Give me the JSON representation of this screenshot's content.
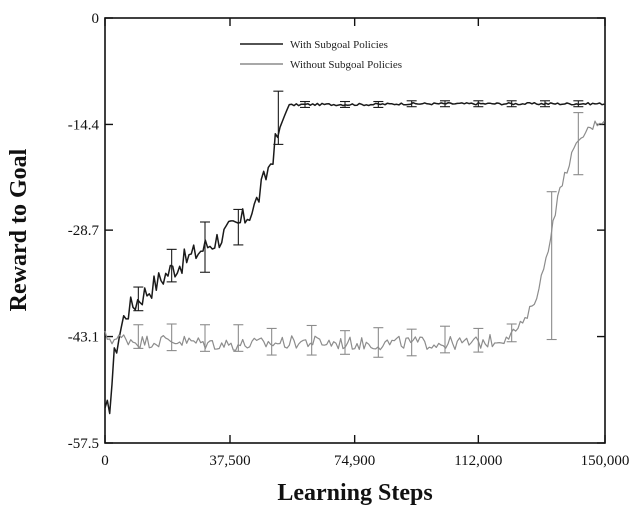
{
  "chart_data": {
    "type": "line",
    "title": "",
    "xlabel": "Learning Steps",
    "ylabel": "Reward to Goal",
    "xlim": [
      0,
      150000
    ],
    "ylim": [
      -57.5,
      0
    ],
    "x_ticks": [
      0,
      37500,
      74900,
      112000,
      150000
    ],
    "x_tick_labels": [
      "0",
      "37,500",
      "74,900",
      "112,000",
      "150,000"
    ],
    "y_ticks": [
      0,
      -14.4,
      -28.7,
      -43.1,
      -57.5
    ],
    "y_tick_labels": [
      "0",
      "-14.4",
      "-28.7",
      "-43.1",
      "-57.5"
    ],
    "legend_position": "top-center",
    "grid": false,
    "series": [
      {
        "name": "With Subgoal Policies",
        "color": "#1a1a1a",
        "x": [
          0,
          1500,
          3000,
          6000,
          10000,
          15000,
          20000,
          25000,
          30000,
          35000,
          40000,
          45000,
          47000,
          50000,
          52000,
          55000,
          60000,
          70000,
          80000,
          90000,
          100000,
          110000,
          120000,
          130000,
          140000,
          150000
        ],
        "y": [
          -54,
          -52,
          -45,
          -40,
          -38,
          -36,
          -34,
          -32.5,
          -31,
          -29.5,
          -28,
          -25.5,
          -23,
          -19,
          -15.5,
          -11.8,
          -11.7,
          -11.7,
          -11.7,
          -11.6,
          -11.6,
          -11.6,
          -11.6,
          -11.6,
          -11.6,
          -11.6
        ],
        "error_bars": [
          {
            "x": 52000,
            "y": -13.5,
            "err": 3.6
          },
          {
            "x": 60000,
            "y": -11.7,
            "err": 0.4
          },
          {
            "x": 72000,
            "y": -11.7,
            "err": 0.4
          },
          {
            "x": 82000,
            "y": -11.7,
            "err": 0.4
          },
          {
            "x": 92000,
            "y": -11.6,
            "err": 0.4
          },
          {
            "x": 102000,
            "y": -11.6,
            "err": 0.4
          },
          {
            "x": 112000,
            "y": -11.6,
            "err": 0.4
          },
          {
            "x": 122000,
            "y": -11.6,
            "err": 0.4
          },
          {
            "x": 132000,
            "y": -11.6,
            "err": 0.4
          },
          {
            "x": 142000,
            "y": -11.6,
            "err": 0.4
          },
          {
            "x": 20000,
            "y": -33.5,
            "err": 2.2
          },
          {
            "x": 30000,
            "y": -31,
            "err": 3.4
          },
          {
            "x": 40000,
            "y": -28.3,
            "err": 2.4
          },
          {
            "x": 10000,
            "y": -38,
            "err": 1.6
          }
        ]
      },
      {
        "name": "Without Subgoal Policies",
        "color": "#8c8c8c",
        "x": [
          0,
          3000,
          6000,
          10000,
          20000,
          30000,
          40000,
          50000,
          60000,
          70000,
          80000,
          90000,
          100000,
          110000,
          118000,
          122000,
          126000,
          130000,
          133000,
          136000,
          140000,
          144000,
          148000,
          150000
        ],
        "y": [
          -43.1,
          -43.5,
          -43.3,
          -43.8,
          -43.6,
          -44,
          -44.2,
          -44,
          -43.8,
          -44,
          -44.1,
          -43.9,
          -44,
          -44,
          -43.6,
          -42.7,
          -41,
          -37,
          -31,
          -24,
          -18.5,
          -15.5,
          -14,
          -13.8
        ],
        "error_bars": [
          {
            "x": 10000,
            "y": -43.1,
            "err": 1.6
          },
          {
            "x": 20000,
            "y": -43.2,
            "err": 1.8
          },
          {
            "x": 30000,
            "y": -43.3,
            "err": 1.8
          },
          {
            "x": 40000,
            "y": -43.3,
            "err": 1.8
          },
          {
            "x": 50000,
            "y": -43.8,
            "err": 1.8
          },
          {
            "x": 62000,
            "y": -43.6,
            "err": 2.0
          },
          {
            "x": 72000,
            "y": -43.9,
            "err": 1.6
          },
          {
            "x": 82000,
            "y": -43.9,
            "err": 2.0
          },
          {
            "x": 92000,
            "y": -43.9,
            "err": 1.8
          },
          {
            "x": 102000,
            "y": -43.5,
            "err": 1.8
          },
          {
            "x": 112000,
            "y": -43.6,
            "err": 1.6
          },
          {
            "x": 122000,
            "y": -42.6,
            "err": 1.2
          },
          {
            "x": 134000,
            "y": -33.5,
            "err": 10.0
          },
          {
            "x": 142000,
            "y": -17,
            "err": 4.2
          }
        ]
      }
    ]
  }
}
